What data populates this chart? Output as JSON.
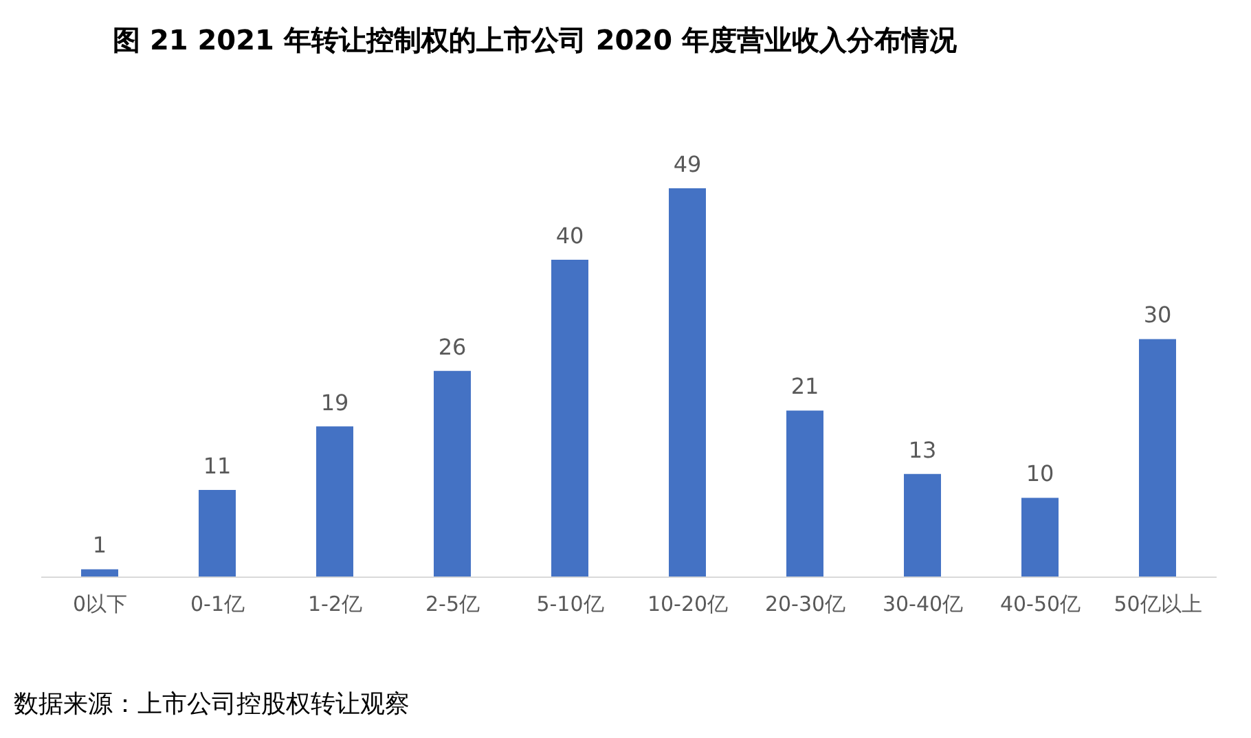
{
  "chart_data": {
    "type": "bar",
    "title": "图 21 2021 年转让控制权的上市公司 2020 年度营业收入分布情况",
    "categories": [
      "0以下",
      "0-1亿",
      "1-2亿",
      "2-5亿",
      "5-10亿",
      "10-20亿",
      "20-30亿",
      "30-40亿",
      "40-50亿",
      "50亿以上"
    ],
    "values": [
      1,
      11,
      19,
      26,
      40,
      49,
      21,
      13,
      10,
      30
    ],
    "color": "#4472c4",
    "data_labels": true,
    "annotations": [
      "数据来源：上市公司控股权转让观察"
    ]
  }
}
